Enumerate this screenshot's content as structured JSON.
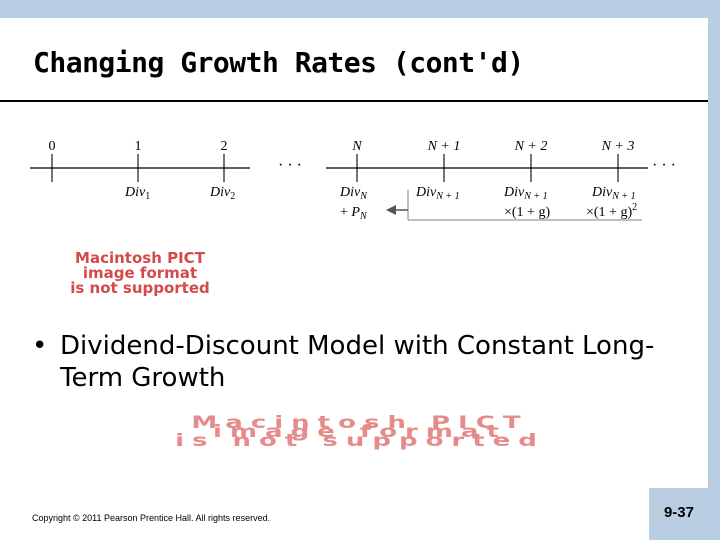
{
  "title": "Changing Growth Rates (cont'd)",
  "timeline": {
    "ticks": [
      "0",
      "1",
      "2",
      "N",
      "N + 1",
      "N + 2",
      "N + 3"
    ],
    "ellipsis": "· · ·",
    "labels": {
      "div1": {
        "base": "Div",
        "sub": "1"
      },
      "div2": {
        "base": "Div",
        "sub": "2"
      },
      "divN": {
        "base": "Div",
        "sub": "N"
      },
      "pN": {
        "prefix": "+ ",
        "base": "P",
        "sub": "N"
      },
      "divN1": {
        "base": "Div",
        "sub": "N + 1"
      },
      "divN1b": {
        "base": "Div",
        "sub": "N + 1",
        "line2": "×(1 + g)"
      },
      "divN1c": {
        "base": "Div",
        "sub": "N + 1",
        "line2": "×(1 + g)",
        "sup": "2"
      }
    }
  },
  "placeholder_image_1": {
    "lines": [
      "Macintosh PICT",
      "image format",
      "is not supported"
    ]
  },
  "bullet": {
    "dot": "•",
    "text": "Dividend-Discount Model with Constant Long-Term Growth"
  },
  "placeholder_image_2": {
    "lines": [
      "Macintosh PICT",
      "image format",
      "is not supported"
    ]
  },
  "footer": {
    "copyright": "Copyright © 2011 Pearson Prentice Hall. All rights reserved.",
    "page_number": "9-37"
  },
  "colors": {
    "accent_bar": "#b9cde3",
    "pict_text": "#d44a4a"
  }
}
